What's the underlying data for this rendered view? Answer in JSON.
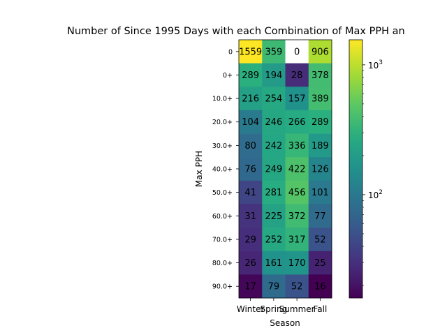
{
  "chart_data": {
    "type": "heatmap",
    "title": "Number of Since 1995 Days with each Combination of Max PPH an",
    "xlabel": "Season",
    "ylabel": "Max PPH",
    "x_categories": [
      "Winter",
      "Spring",
      "Summer",
      "Fall"
    ],
    "y_categories": [
      "0",
      "0+",
      "10.0+",
      "20.0+",
      "30.0+",
      "40.0+",
      "50.0+",
      "60.0+",
      "70.0+",
      "80.0+",
      "90.0+"
    ],
    "values": [
      [
        1559,
        359,
        0,
        906
      ],
      [
        289,
        194,
        28,
        378
      ],
      [
        216,
        254,
        157,
        389
      ],
      [
        104,
        246,
        266,
        289
      ],
      [
        80,
        242,
        336,
        189
      ],
      [
        76,
        249,
        422,
        126
      ],
      [
        41,
        281,
        456,
        101
      ],
      [
        31,
        225,
        372,
        77
      ],
      [
        29,
        252,
        317,
        52
      ],
      [
        26,
        161,
        170,
        25
      ],
      [
        17,
        79,
        52,
        16
      ]
    ],
    "colorbar": {
      "scale": "log",
      "colormap": "viridis",
      "range": [
        16,
        1559
      ],
      "tick_labels": [
        {
          "value": 100,
          "base": "10",
          "exp": "2"
        },
        {
          "value": 1000,
          "base": "10",
          "exp": "3"
        }
      ]
    },
    "zero_cell_color": "#ffffff"
  }
}
